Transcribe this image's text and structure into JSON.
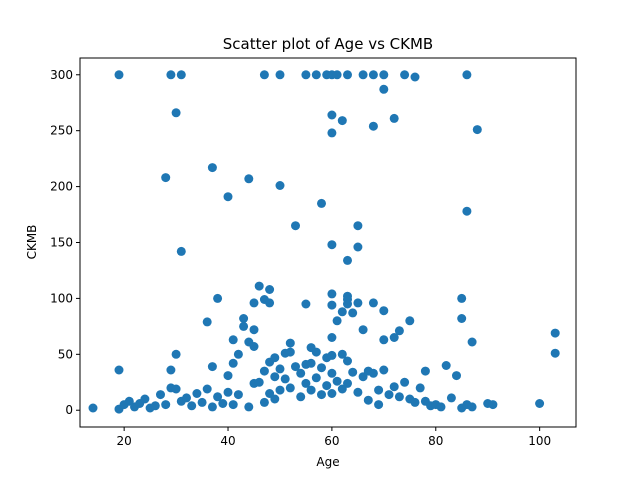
{
  "chart_data": {
    "type": "scatter",
    "title": "Scatter plot of Age vs CKMB",
    "xlabel": "Age",
    "ylabel": "CKMB",
    "xlim": [
      11.5,
      107
    ],
    "ylim": [
      -15,
      315
    ],
    "xticks": [
      20,
      40,
      60,
      80,
      100
    ],
    "yticks": [
      0,
      50,
      100,
      150,
      200,
      250,
      300
    ],
    "grid": false,
    "marker_color": "#1f77b4",
    "points": [
      [
        14,
        2
      ],
      [
        19,
        300
      ],
      [
        19,
        36
      ],
      [
        19,
        1
      ],
      [
        20,
        5
      ],
      [
        21,
        8
      ],
      [
        22,
        3
      ],
      [
        23,
        6
      ],
      [
        24,
        10
      ],
      [
        25,
        2
      ],
      [
        26,
        4
      ],
      [
        27,
        14
      ],
      [
        28,
        5
      ],
      [
        28,
        208
      ],
      [
        29,
        300
      ],
      [
        29,
        20
      ],
      [
        29,
        36
      ],
      [
        30,
        266
      ],
      [
        30,
        50
      ],
      [
        30,
        19
      ],
      [
        31,
        300
      ],
      [
        31,
        142
      ],
      [
        31,
        8
      ],
      [
        32,
        11
      ],
      [
        33,
        4
      ],
      [
        34,
        15
      ],
      [
        35,
        7
      ],
      [
        36,
        79
      ],
      [
        36,
        19
      ],
      [
        37,
        217
      ],
      [
        37,
        39
      ],
      [
        37,
        3
      ],
      [
        38,
        100
      ],
      [
        38,
        12
      ],
      [
        39,
        6
      ],
      [
        40,
        191
      ],
      [
        40,
        31
      ],
      [
        40,
        16
      ],
      [
        41,
        63
      ],
      [
        41,
        42
      ],
      [
        41,
        5
      ],
      [
        42,
        50
      ],
      [
        42,
        14
      ],
      [
        43,
        82
      ],
      [
        43,
        75
      ],
      [
        44,
        207
      ],
      [
        44,
        61
      ],
      [
        44,
        3
      ],
      [
        45,
        96
      ],
      [
        45,
        72
      ],
      [
        45,
        57
      ],
      [
        45,
        24
      ],
      [
        46,
        111
      ],
      [
        46,
        25
      ],
      [
        47,
        300
      ],
      [
        47,
        99
      ],
      [
        47,
        35
      ],
      [
        47,
        7
      ],
      [
        48,
        108
      ],
      [
        48,
        96
      ],
      [
        48,
        43
      ],
      [
        48,
        15
      ],
      [
        49,
        47
      ],
      [
        49,
        30
      ],
      [
        49,
        10
      ],
      [
        50,
        300
      ],
      [
        50,
        201
      ],
      [
        50,
        37
      ],
      [
        50,
        18
      ],
      [
        51,
        51
      ],
      [
        51,
        28
      ],
      [
        52,
        60
      ],
      [
        52,
        52
      ],
      [
        52,
        20
      ],
      [
        53,
        165
      ],
      [
        53,
        39
      ],
      [
        54,
        33
      ],
      [
        54,
        12
      ],
      [
        55,
        300
      ],
      [
        55,
        95
      ],
      [
        55,
        41
      ],
      [
        55,
        24
      ],
      [
        56,
        56
      ],
      [
        56,
        42
      ],
      [
        56,
        18
      ],
      [
        57,
        300
      ],
      [
        57,
        52
      ],
      [
        57,
        29
      ],
      [
        58,
        185
      ],
      [
        58,
        38
      ],
      [
        58,
        14
      ],
      [
        59,
        300
      ],
      [
        59,
        47
      ],
      [
        59,
        22
      ],
      [
        60,
        300
      ],
      [
        60,
        264
      ],
      [
        60,
        248
      ],
      [
        60,
        148
      ],
      [
        60,
        104
      ],
      [
        60,
        94
      ],
      [
        60,
        65
      ],
      [
        60,
        49
      ],
      [
        60,
        33
      ],
      [
        60,
        15
      ],
      [
        61,
        300
      ],
      [
        61,
        80
      ],
      [
        61,
        26
      ],
      [
        62,
        259
      ],
      [
        62,
        88
      ],
      [
        62,
        50
      ],
      [
        62,
        19
      ],
      [
        63,
        300
      ],
      [
        63,
        134
      ],
      [
        63,
        102
      ],
      [
        63,
        99
      ],
      [
        63,
        95
      ],
      [
        63,
        44
      ],
      [
        63,
        24
      ],
      [
        64,
        87
      ],
      [
        64,
        34
      ],
      [
        65,
        165
      ],
      [
        65,
        146
      ],
      [
        65,
        96
      ],
      [
        65,
        16
      ],
      [
        66,
        300
      ],
      [
        66,
        72
      ],
      [
        66,
        30
      ],
      [
        67,
        35
      ],
      [
        67,
        9
      ],
      [
        68,
        300
      ],
      [
        68,
        254
      ],
      [
        68,
        96
      ],
      [
        68,
        33
      ],
      [
        69,
        18
      ],
      [
        69,
        5
      ],
      [
        70,
        300
      ],
      [
        70,
        287
      ],
      [
        70,
        89
      ],
      [
        70,
        63
      ],
      [
        70,
        36
      ],
      [
        71,
        14
      ],
      [
        72,
        261
      ],
      [
        72,
        65
      ],
      [
        72,
        21
      ],
      [
        73,
        71
      ],
      [
        73,
        12
      ],
      [
        74,
        300
      ],
      [
        74,
        25
      ],
      [
        75,
        80
      ],
      [
        75,
        10
      ],
      [
        76,
        298
      ],
      [
        76,
        7
      ],
      [
        77,
        20
      ],
      [
        78,
        35
      ],
      [
        78,
        8
      ],
      [
        79,
        4
      ],
      [
        80,
        5
      ],
      [
        81,
        3
      ],
      [
        82,
        40
      ],
      [
        83,
        11
      ],
      [
        84,
        31
      ],
      [
        85,
        100
      ],
      [
        85,
        82
      ],
      [
        85,
        2
      ],
      [
        86,
        300
      ],
      [
        86,
        178
      ],
      [
        86,
        5
      ],
      [
        87,
        61
      ],
      [
        87,
        3
      ],
      [
        88,
        251
      ],
      [
        90,
        6
      ],
      [
        91,
        5
      ],
      [
        100,
        6
      ],
      [
        103,
        69
      ],
      [
        103,
        51
      ]
    ]
  }
}
